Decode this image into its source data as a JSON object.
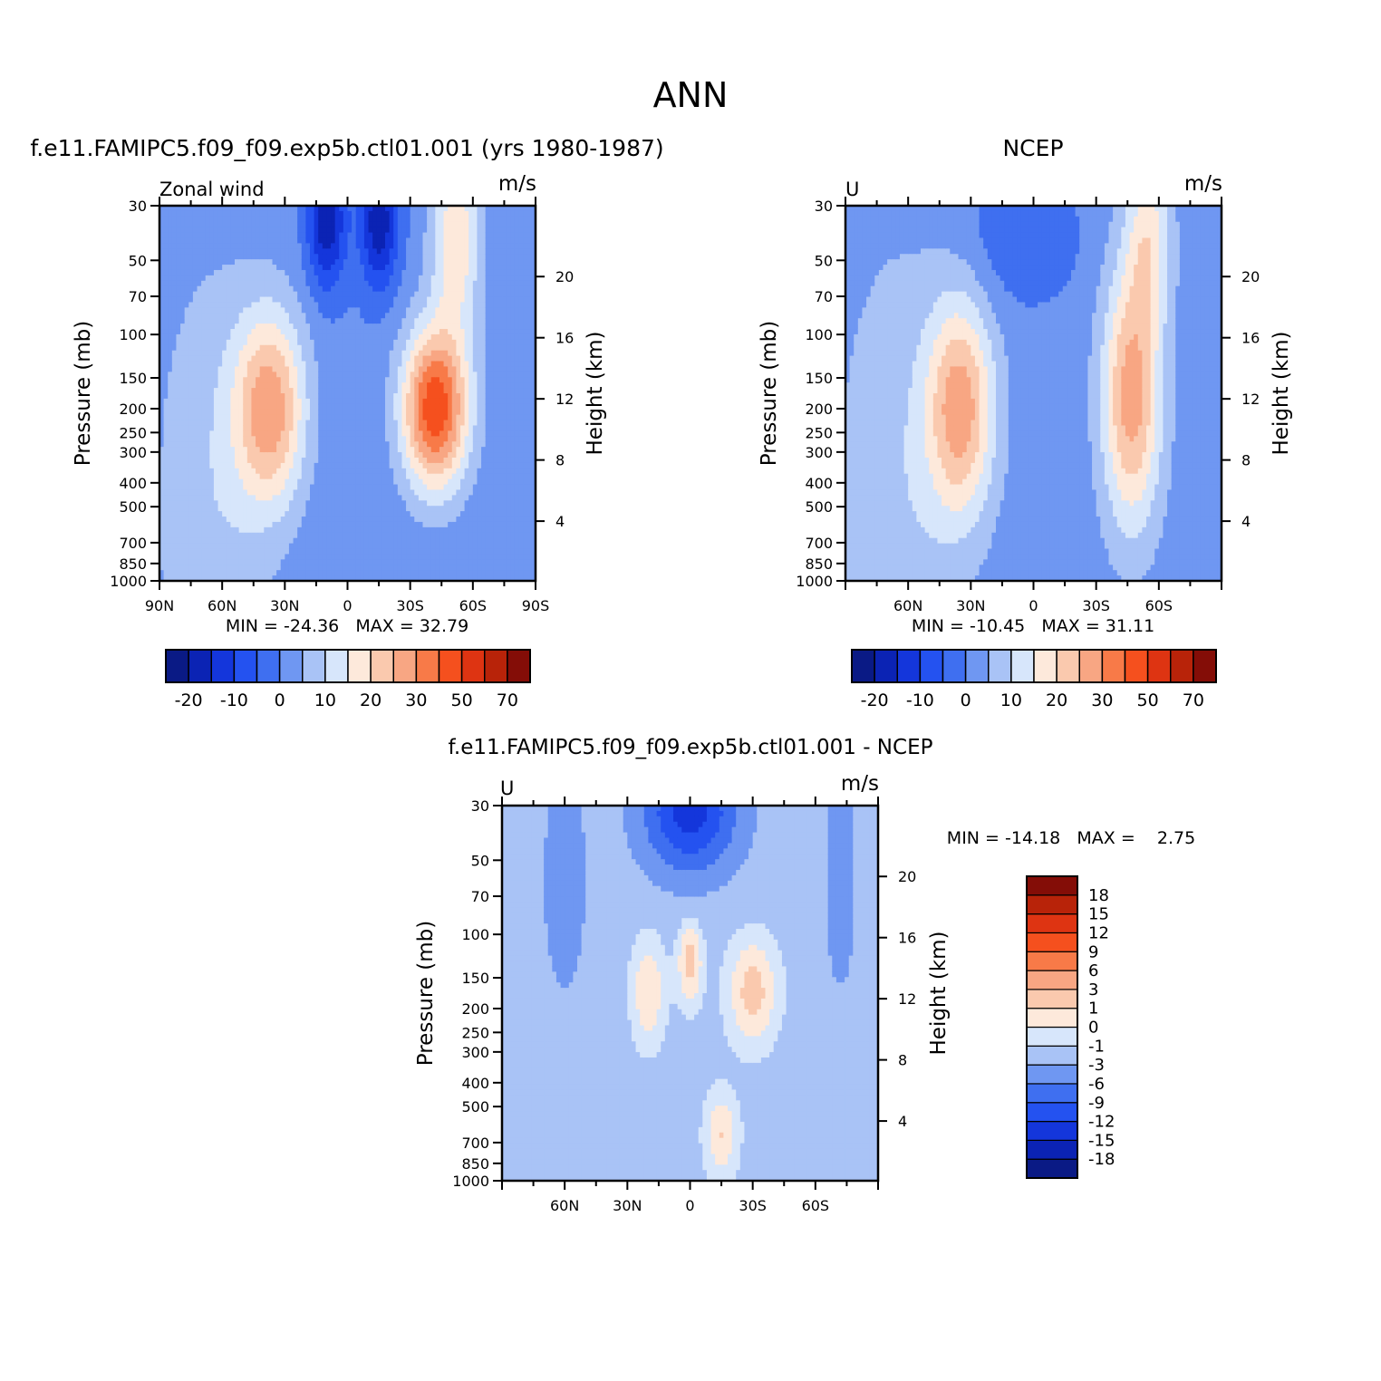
{
  "page": {
    "title": "ANN"
  },
  "colors": {
    "full_palette": [
      "#0a1a85",
      "#0b23b4",
      "#1436db",
      "#2452f0",
      "#3f6ff0",
      "#6f97f2",
      "#a9c3f6",
      "#d7e6fb",
      "#fde9db",
      "#fac9ae",
      "#f8a683",
      "#f87a48",
      "#f5501e",
      "#de3412",
      "#b82309",
      "#840d07"
    ],
    "diff_palette": [
      "#0a1a85",
      "#0b23b4",
      "#1436db",
      "#2452f0",
      "#3f6ff0",
      "#6f97f2",
      "#a9c3f6",
      "#d7e6fb",
      "#fde9db",
      "#fac9ae",
      "#f8a683",
      "#f87a48",
      "#f5501e",
      "#de3412",
      "#b82309",
      "#840d07"
    ]
  },
  "chart_data": [
    {
      "type": "heatmap",
      "id": "model",
      "header": "f.e11.FAMIPC5.f09_f09.exp5b.ctl01.001 (yrs 1980-1987)",
      "title_left": "Zonal wind",
      "units": "m/s",
      "ylabel": "Pressure (mb)",
      "ylabel_right": "Height (km)",
      "x_tick_labels": [
        "90N",
        "60N",
        "30N",
        "0",
        "30S",
        "60S",
        "90S"
      ],
      "x_ticks": [
        90,
        60,
        30,
        0,
        -30,
        -60,
        -90
      ],
      "xlim": [
        90,
        -90
      ],
      "y_ticks": [
        30,
        50,
        70,
        100,
        150,
        200,
        250,
        300,
        400,
        500,
        700,
        850,
        1000
      ],
      "ylim": [
        1000,
        30
      ],
      "height_ticks": [
        20,
        16,
        12,
        8,
        4
      ],
      "stats": "MIN = -24.36   MAX = 32.79",
      "colorbar_labels": [
        "-20",
        "-10",
        "0",
        "10",
        "20",
        "30",
        "50",
        "70"
      ],
      "features": [
        {
          "lat": 37,
          "p": 200,
          "u": 20,
          "kind": "westerly jet"
        },
        {
          "lat": -42,
          "p": 200,
          "u": 32.79,
          "kind": "westerly jet"
        },
        {
          "lat": -15,
          "p": 40,
          "u": -24,
          "kind": "stratospheric easterlies"
        },
        {
          "lat": 10,
          "p": 40,
          "u": -24,
          "kind": "stratospheric easterlies"
        },
        {
          "lat": 0,
          "p": 300,
          "u": -5,
          "kind": "tropical easterlies"
        }
      ]
    },
    {
      "type": "heatmap",
      "id": "obs",
      "header": "NCEP",
      "title_left": "U",
      "units": "m/s",
      "ylabel": "Pressure (mb)",
      "ylabel_right": "Height (km)",
      "x_tick_labels": [
        "60N",
        "30N",
        "0",
        "30S",
        "60S"
      ],
      "x_ticks": [
        60,
        30,
        0,
        -30,
        -60
      ],
      "xlim": [
        90,
        -90
      ],
      "y_ticks": [
        30,
        50,
        70,
        100,
        150,
        200,
        250,
        300,
        400,
        500,
        700,
        850,
        1000
      ],
      "ylim": [
        1000,
        30
      ],
      "height_ticks": [
        20,
        16,
        12,
        8,
        4
      ],
      "stats": "MIN = -10.45   MAX = 31.11",
      "colorbar_labels": [
        "-20",
        "-10",
        "0",
        "10",
        "20",
        "30",
        "50",
        "70"
      ],
      "features": [
        {
          "lat": 35,
          "p": 200,
          "u": 22,
          "kind": "westerly jet"
        },
        {
          "lat": -50,
          "p": 50,
          "u": 31.11,
          "kind": "westerly jet"
        },
        {
          "lat": 5,
          "p": 40,
          "u": -10,
          "kind": "stratospheric easterlies"
        }
      ]
    },
    {
      "type": "heatmap",
      "id": "diff",
      "header": "f.e11.FAMIPC5.f09_f09.exp5b.ctl01.001 - NCEP",
      "title_left": "U",
      "units": "m/s",
      "ylabel": "Pressure (mb)",
      "ylabel_right": "Height (km)",
      "x_tick_labels": [
        "60N",
        "30N",
        "0",
        "30S",
        "60S"
      ],
      "x_ticks": [
        60,
        30,
        0,
        -30,
        -60
      ],
      "xlim": [
        90,
        -90
      ],
      "y_ticks": [
        30,
        50,
        70,
        100,
        150,
        200,
        250,
        300,
        400,
        500,
        700,
        850,
        1000
      ],
      "ylim": [
        1000,
        30
      ],
      "height_ticks": [
        20,
        16,
        12,
        8,
        4
      ],
      "stats": "MIN = -14.18   MAX =    2.75",
      "colorbar_labels": [
        "18",
        "15",
        "12",
        "9",
        "6",
        "3",
        "1",
        "0",
        "-1",
        "-3",
        "-6",
        "-9",
        "-12",
        "-15",
        "-18"
      ],
      "features": [
        {
          "lat": 0,
          "p": 40,
          "u": -14.18,
          "kind": "stratospheric difference"
        },
        {
          "lat": -30,
          "p": 170,
          "u": 2.75,
          "kind": "positive difference"
        }
      ]
    }
  ]
}
